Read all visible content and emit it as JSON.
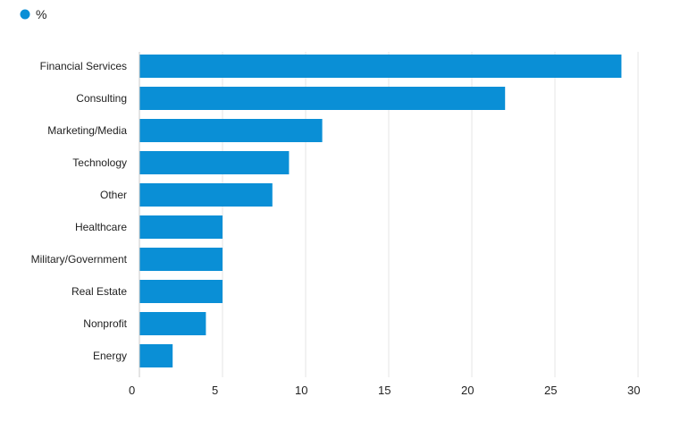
{
  "legend": {
    "label": "%",
    "color": "#0a8fd6"
  },
  "chart_data": {
    "type": "bar",
    "orientation": "horizontal",
    "categories": [
      "Financial Services",
      "Consulting",
      "Marketing/Media",
      "Technology",
      "Other",
      "Healthcare",
      "Military/Government",
      "Real Estate",
      "Nonprofit",
      "Energy"
    ],
    "series": [
      {
        "name": "%",
        "values": [
          29,
          22,
          11,
          9,
          8,
          5,
          5,
          5,
          4,
          2
        ]
      }
    ],
    "xlim": [
      0,
      30
    ],
    "xticks": [
      0,
      5,
      10,
      15,
      20,
      25,
      30
    ],
    "grid": true,
    "legend_position": "top-left"
  }
}
